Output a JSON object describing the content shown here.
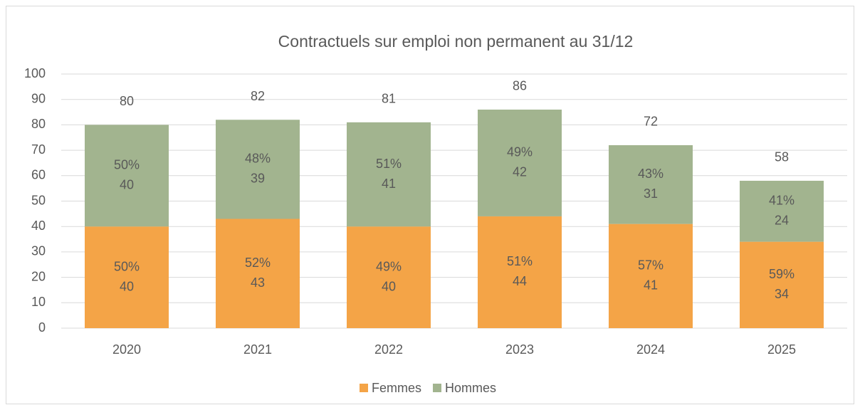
{
  "chart_data": {
    "type": "stacked_bar",
    "title": "Contractuels sur emploi non permanent au 31/12",
    "categories": [
      "2020",
      "2021",
      "2022",
      "2023",
      "2024",
      "2025"
    ],
    "series": [
      {
        "name": "Femmes",
        "color": "#f4a447",
        "values": [
          40,
          43,
          40,
          44,
          41,
          34
        ],
        "percent_labels": [
          "50%",
          "52%",
          "49%",
          "51%",
          "57%",
          "59%"
        ]
      },
      {
        "name": "Hommes",
        "color": "#a2b48f",
        "values": [
          40,
          39,
          41,
          42,
          31,
          24
        ],
        "percent_labels": [
          "50%",
          "48%",
          "51%",
          "49%",
          "43%",
          "41%"
        ]
      }
    ],
    "totals": [
      80,
      82,
      81,
      86,
      72,
      58
    ],
    "ylim": [
      0,
      100
    ],
    "yticks": [
      0,
      10,
      20,
      30,
      40,
      50,
      60,
      70,
      80,
      90,
      100
    ],
    "grid": true,
    "legend": "bottom"
  }
}
